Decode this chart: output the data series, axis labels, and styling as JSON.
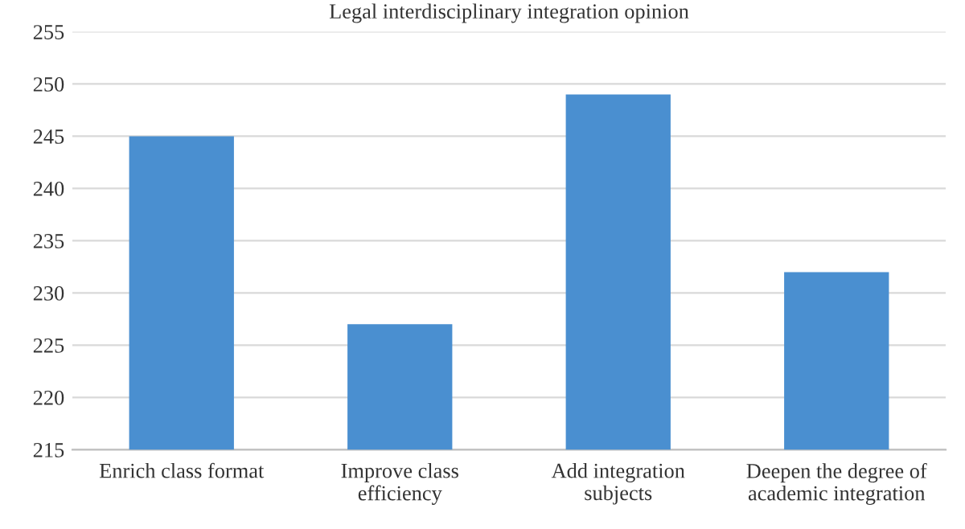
{
  "chart_data": {
    "type": "bar",
    "title": "Legal interdisciplinary integration opinion",
    "categories": [
      "Enrich class format",
      "Improve class efficiency",
      "Add integration subjects",
      "Deepen the degree of academic integration"
    ],
    "values": [
      245,
      227,
      249,
      232
    ],
    "color": "#4a8fd0",
    "ylim": [
      215,
      255
    ],
    "yticks": [
      215,
      220,
      225,
      230,
      235,
      240,
      245,
      250,
      255
    ],
    "grid": "y"
  }
}
